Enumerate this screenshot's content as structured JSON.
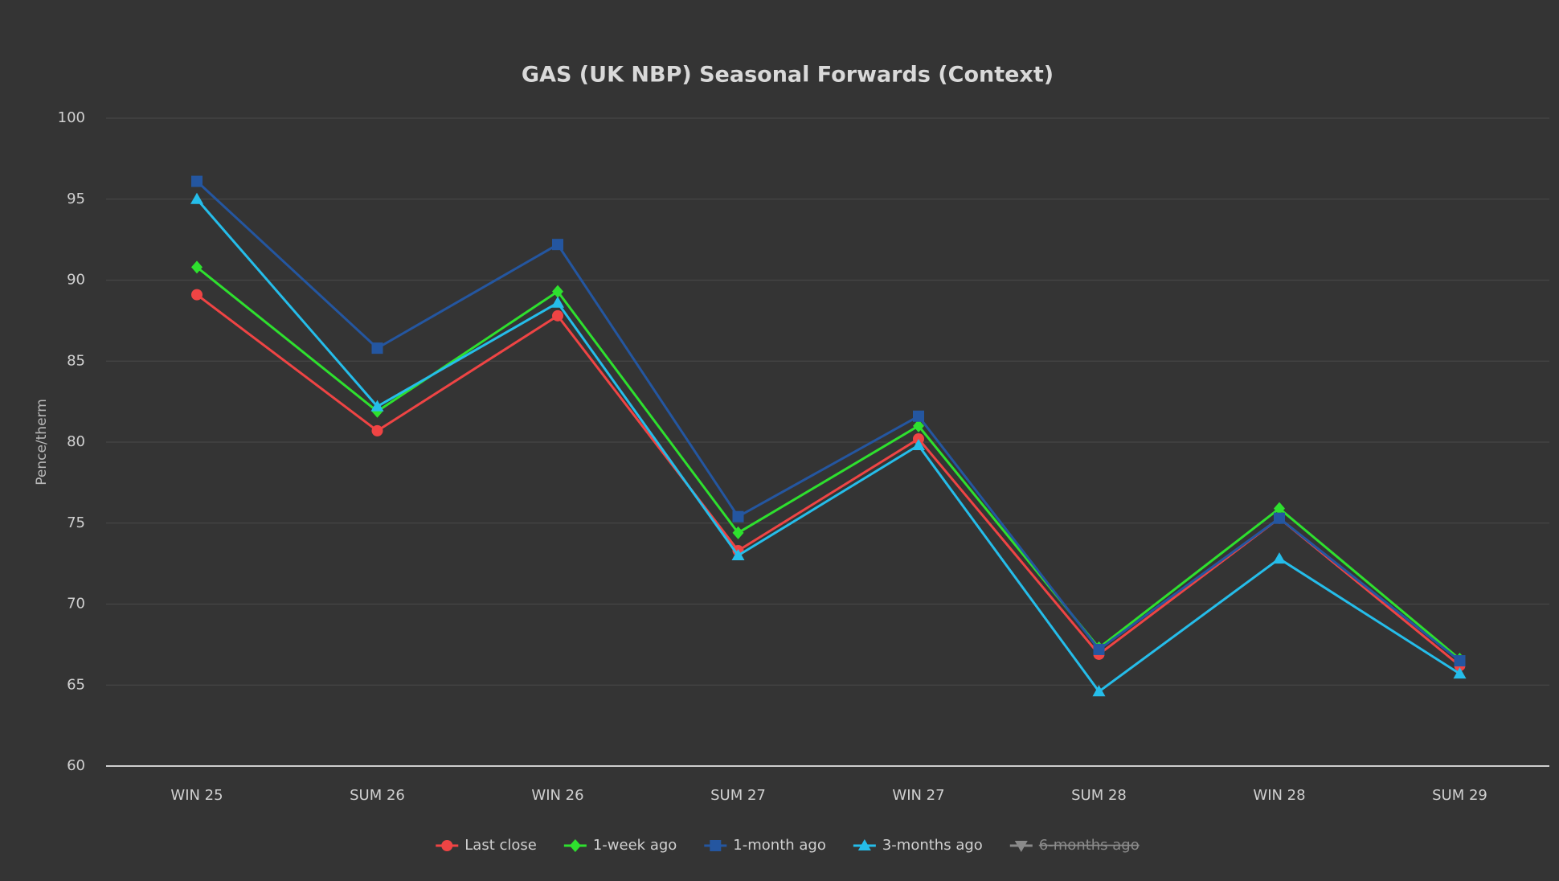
{
  "chart_data": {
    "type": "line",
    "title": "GAS (UK NBP) Seasonal Forwards (Context)",
    "y_label": "Pence/therm",
    "categories": [
      "WIN 25",
      "SUM 26",
      "WIN 26",
      "SUM 27",
      "WIN 27",
      "SUM 28",
      "WIN 28",
      "SUM 29"
    ],
    "ylim": [
      60,
      100
    ],
    "yticks": [
      60,
      65,
      70,
      75,
      80,
      85,
      90,
      95,
      100
    ],
    "grid": true,
    "legend": "bottom",
    "series": [
      {
        "name": "Last close",
        "color": "#ef4444",
        "marker": "circle",
        "values": [
          89.1,
          80.7,
          87.8,
          73.3,
          80.2,
          66.9,
          75.3,
          66.2
        ]
      },
      {
        "name": "1-week ago",
        "color": "#2ee02e",
        "marker": "diamond",
        "values": [
          90.8,
          81.9,
          89.3,
          74.4,
          81.0,
          67.3,
          75.9,
          66.6
        ]
      },
      {
        "name": "1-month ago",
        "color": "#2456a0",
        "marker": "square",
        "values": [
          96.1,
          85.8,
          92.2,
          75.4,
          81.6,
          67.2,
          75.3,
          66.5
        ]
      },
      {
        "name": "3-months ago",
        "color": "#25bdea",
        "marker": "triangle",
        "values": [
          95.0,
          82.2,
          88.6,
          73.0,
          79.8,
          64.6,
          72.8,
          65.7
        ]
      },
      {
        "name": "6-months ago",
        "color": "#8a8a8a",
        "marker": "triangle-down",
        "hidden": true,
        "values": [
          null,
          null,
          null,
          null,
          null,
          null,
          null,
          null
        ]
      }
    ]
  }
}
